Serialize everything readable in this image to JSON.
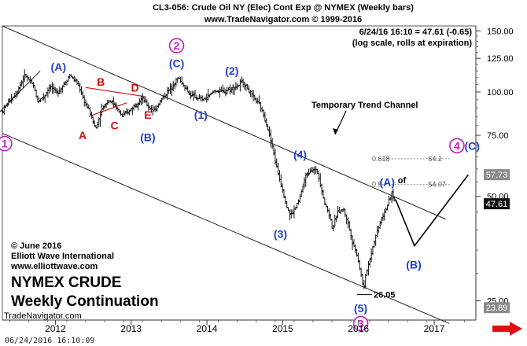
{
  "header": {
    "title": "CL3-056:  Crude Oil NY (Elec) Cont Exp @ NYMEX  (Weekly bars)",
    "copyright": "www.TradeNavigator.com © 1999-2016",
    "last_bar": "6/24/16 16:10 = 47.61 (-0.65)",
    "scale_note": "(log scale, rolls at expiration)"
  },
  "branding": {
    "copyright": "© June 2016",
    "company": "Elliott Wave International",
    "url": "www.elliottwave.com",
    "title_line1": "NYMEX CRUDE",
    "title_line2": "Weekly Continuation",
    "source": "TradeNavigator.com",
    "timestamp": "06/24/2016 16:10:09"
  },
  "colors": {
    "bars": "#111111",
    "wave_blue": "#1f3fd0",
    "wave_red": "#d01010",
    "wave_magenta": "#c020c0",
    "channel": "#222222",
    "price_tag_dark": "#111111",
    "price_tag_gray": "#8a8a8a",
    "scroll_arrow": "#e01010"
  },
  "icons": {
    "scroll_right": "right-arrow-icon"
  },
  "chart_data": {
    "type": "ohlc",
    "scale": "log",
    "ylim": [
      22,
      155
    ],
    "xlim": [
      2011.3,
      2017.5
    ],
    "yticks": [
      25.0,
      50.0,
      75.0,
      100.0,
      125.0,
      150.0
    ],
    "ytick_labels": [
      "25.00",
      "50.00",
      "75.00",
      "100.00",
      "125.00",
      "150.00"
    ],
    "xticks": [
      2012,
      2013,
      2014,
      2015,
      2016,
      2017
    ],
    "xtick_labels": [
      "2012",
      "2013",
      "2014",
      "2015",
      "2016",
      "2017"
    ],
    "grid": false,
    "series": [
      {
        "anchors": [
          [
            2011.3,
            88
          ],
          [
            2011.4,
            95
          ],
          [
            2011.48,
            99
          ],
          [
            2011.6,
            112
          ],
          [
            2011.72,
            103
          ],
          [
            2011.76,
            94
          ],
          [
            2011.85,
            97
          ],
          [
            2011.93,
            104
          ],
          [
            2012.02,
            99
          ],
          [
            2012.12,
            106
          ],
          [
            2012.19,
            112
          ],
          [
            2012.3,
            105
          ],
          [
            2012.38,
            94
          ],
          [
            2012.45,
            88
          ],
          [
            2012.53,
            78
          ],
          [
            2012.62,
            90
          ],
          [
            2012.7,
            95
          ],
          [
            2012.78,
            92
          ],
          [
            2012.88,
            85
          ],
          [
            2012.97,
            88
          ],
          [
            2013.05,
            92
          ],
          [
            2013.14,
            96
          ],
          [
            2013.22,
            91
          ],
          [
            2013.3,
            88
          ],
          [
            2013.38,
            94
          ],
          [
            2013.46,
            99
          ],
          [
            2013.54,
            104
          ],
          [
            2013.62,
            110
          ],
          [
            2013.7,
            104
          ],
          [
            2013.78,
            98
          ],
          [
            2013.88,
            96
          ],
          [
            2013.95,
            95
          ],
          [
            2014.02,
            97
          ],
          [
            2014.1,
            101
          ],
          [
            2014.2,
            100
          ],
          [
            2014.3,
            102
          ],
          [
            2014.4,
            104
          ],
          [
            2014.48,
            107
          ],
          [
            2014.55,
            101
          ],
          [
            2014.62,
            96
          ],
          [
            2014.7,
            91
          ],
          [
            2014.78,
            82
          ],
          [
            2014.86,
            70
          ],
          [
            2014.93,
            59
          ],
          [
            2015.0,
            52
          ],
          [
            2015.05,
            47
          ],
          [
            2015.1,
            44
          ],
          [
            2015.16,
            46
          ],
          [
            2015.22,
            49
          ],
          [
            2015.3,
            57
          ],
          [
            2015.38,
            60
          ],
          [
            2015.46,
            59
          ],
          [
            2015.55,
            48
          ],
          [
            2015.62,
            44
          ],
          [
            2015.66,
            40
          ],
          [
            2015.72,
            45
          ],
          [
            2015.8,
            46
          ],
          [
            2015.86,
            42
          ],
          [
            2015.92,
            37
          ],
          [
            2015.98,
            34
          ],
          [
            2016.03,
            30
          ],
          [
            2016.07,
            27
          ],
          [
            2016.1,
            30
          ],
          [
            2016.15,
            33
          ],
          [
            2016.22,
            38
          ],
          [
            2016.3,
            43
          ],
          [
            2016.38,
            47
          ],
          [
            2016.44,
            51
          ],
          [
            2016.49,
            48
          ],
          [
            2016.49,
            47.61
          ]
        ]
      }
    ],
    "projection_path": [
      [
        2016.49,
        49
      ],
      [
        2016.74,
        36
      ],
      [
        2017.45,
        57.73
      ]
    ],
    "levels": [
      {
        "label": "0.618",
        "value": "64.2",
        "y": 64.2,
        "style": "dotted"
      },
      {
        "label": "0.5",
        "value": "54.07",
        "y": 54.07,
        "style": "dotted"
      },
      {
        "label": "",
        "value": "26.05",
        "y": 26.05,
        "style": "solid"
      }
    ],
    "of_label": "of",
    "channel_lines": [
      {
        "from": [
          2011.3,
          155
        ],
        "to": [
          2017.15,
          43
        ],
        "label": "Temporary Trend Channel"
      },
      {
        "from": [
          2011.3,
          76
        ],
        "to": [
          2017.2,
          21.5
        ]
      },
      {
        "from": [
          2011.25,
          87
        ],
        "to": [
          2011.8,
          115
        ]
      }
    ],
    "triangle_lines": [
      {
        "from": [
          2012.44,
          85
        ],
        "to": [
          2012.94,
          93
        ],
        "color": "wave_red"
      },
      {
        "from": [
          2012.4,
          103
        ],
        "to": [
          2013.18,
          97
        ],
        "color": "wave_red"
      }
    ],
    "wave_labels": [
      {
        "text": "1",
        "x": 2011.33,
        "y": 71.0,
        "color": "wave_magenta",
        "circled": true
      },
      {
        "text": "(A)",
        "x": 2012.04,
        "y": 118,
        "color": "wave_blue"
      },
      {
        "text": "A",
        "x": 2012.36,
        "y": 75,
        "color": "wave_red"
      },
      {
        "text": "B",
        "x": 2012.6,
        "y": 107,
        "color": "wave_red"
      },
      {
        "text": "C",
        "x": 2012.78,
        "y": 80,
        "color": "wave_red"
      },
      {
        "text": "D",
        "x": 2013.05,
        "y": 103,
        "color": "wave_red"
      },
      {
        "text": "(B)",
        "x": 2013.22,
        "y": 74,
        "color": "wave_blue"
      },
      {
        "text": "E",
        "x": 2013.22,
        "y": 86,
        "color": "wave_red"
      },
      {
        "text": "2",
        "x": 2013.6,
        "y": 136,
        "color": "wave_magenta",
        "circled": true
      },
      {
        "text": "(C)",
        "x": 2013.6,
        "y": 121,
        "color": "wave_blue"
      },
      {
        "text": "(1)",
        "x": 2013.92,
        "y": 86,
        "color": "wave_blue"
      },
      {
        "text": "(2)",
        "x": 2014.33,
        "y": 115,
        "color": "wave_blue"
      },
      {
        "text": "(3)",
        "x": 2014.97,
        "y": 39,
        "color": "wave_blue"
      },
      {
        "text": "(4)",
        "x": 2015.23,
        "y": 66,
        "color": "wave_blue"
      },
      {
        "text": "(5)",
        "x": 2016.03,
        "y": 23.8,
        "color": "wave_blue"
      },
      {
        "text": "3",
        "x": 2016.03,
        "y": 21.5,
        "color": "wave_magenta",
        "circled": true
      },
      {
        "text": "(A)",
        "x": 2016.38,
        "y": 55,
        "color": "wave_blue"
      },
      {
        "text": "(B)",
        "x": 2016.73,
        "y": 31.8,
        "color": "wave_blue"
      },
      {
        "text": "4",
        "x": 2017.3,
        "y": 70,
        "color": "wave_magenta",
        "circled": true
      },
      {
        "text": "(C)",
        "x": 2017.5,
        "y": 70,
        "color": "wave_blue"
      }
    ],
    "price_tags": [
      {
        "value": "57.73",
        "y": 57.73,
        "color": "price_tag_gray"
      },
      {
        "value": "47.61",
        "y": 47.61,
        "color": "price_tag_dark"
      },
      {
        "value": "23.89",
        "y": 23.89,
        "color": "price_tag_gray"
      }
    ]
  }
}
